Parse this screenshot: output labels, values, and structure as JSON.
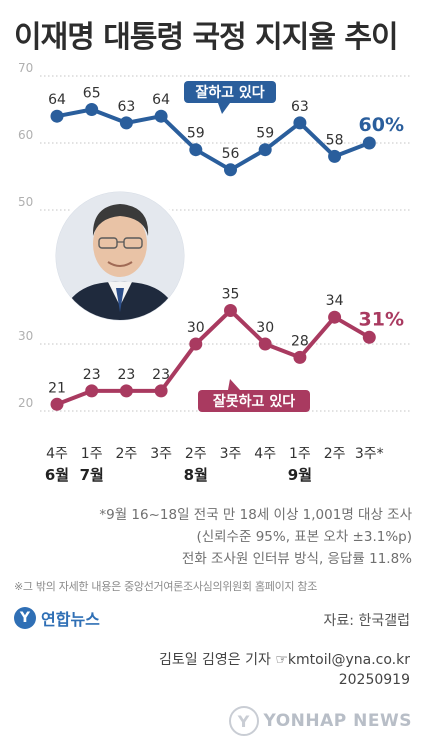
{
  "title": "이재명 대통령 국정 지지율 추이",
  "chart_data": {
    "type": "line",
    "x": [
      "4주",
      "1주",
      "2주",
      "3주",
      "2주",
      "3주",
      "4주",
      "1주",
      "2주",
      "3주*"
    ],
    "month_labels": [
      "6월",
      "7월",
      "",
      "",
      "8월",
      "",
      "",
      "9월",
      "",
      ""
    ],
    "series": [
      {
        "name": "잘하고 있다",
        "values": [
          64,
          65,
          63,
          64,
          59,
          56,
          59,
          63,
          58,
          60
        ],
        "labels": [
          "64",
          "65",
          "63",
          "64",
          "59",
          "56",
          "59",
          "63",
          "58",
          "60%"
        ],
        "color": "#2a5e9c"
      },
      {
        "name": "잘못하고 있다",
        "values": [
          21,
          23,
          23,
          23,
          30,
          35,
          30,
          28,
          34,
          31
        ],
        "labels": [
          "21",
          "23",
          "23",
          "23",
          "30",
          "35",
          "30",
          "28",
          "34",
          "31%"
        ],
        "color": "#a93a60"
      }
    ],
    "yticks": [
      "20",
      "30",
      "50",
      "60",
      "70"
    ],
    "ytick_values": [
      20,
      30,
      50,
      60,
      70
    ],
    "ylim": [
      20,
      70
    ],
    "grid": "dotted horizontal",
    "legend": "callout-bubbles"
  },
  "notes": {
    "line1": "*9월 16~18일 전국 만 18세 이상 1,001명 대상 조사",
    "line2": "(신뢰수준 95%, 표본 오차 ±3.1%p)",
    "line3": "전화 조사원 인터뷰 방식, 응답률 11.8%"
  },
  "source_note": "※그 밖의 자세한 내용은 중앙선거여론조사심의위원회 홈페이지 참조",
  "logo": {
    "text": "연합뉴스"
  },
  "data_source": "자료: 한국갤럽",
  "credit": {
    "line1": "김토일 김영은 기자 ☞kmtoil@yna.co.kr",
    "line2": "20250919"
  },
  "watermark": "YONHAP NEWS"
}
